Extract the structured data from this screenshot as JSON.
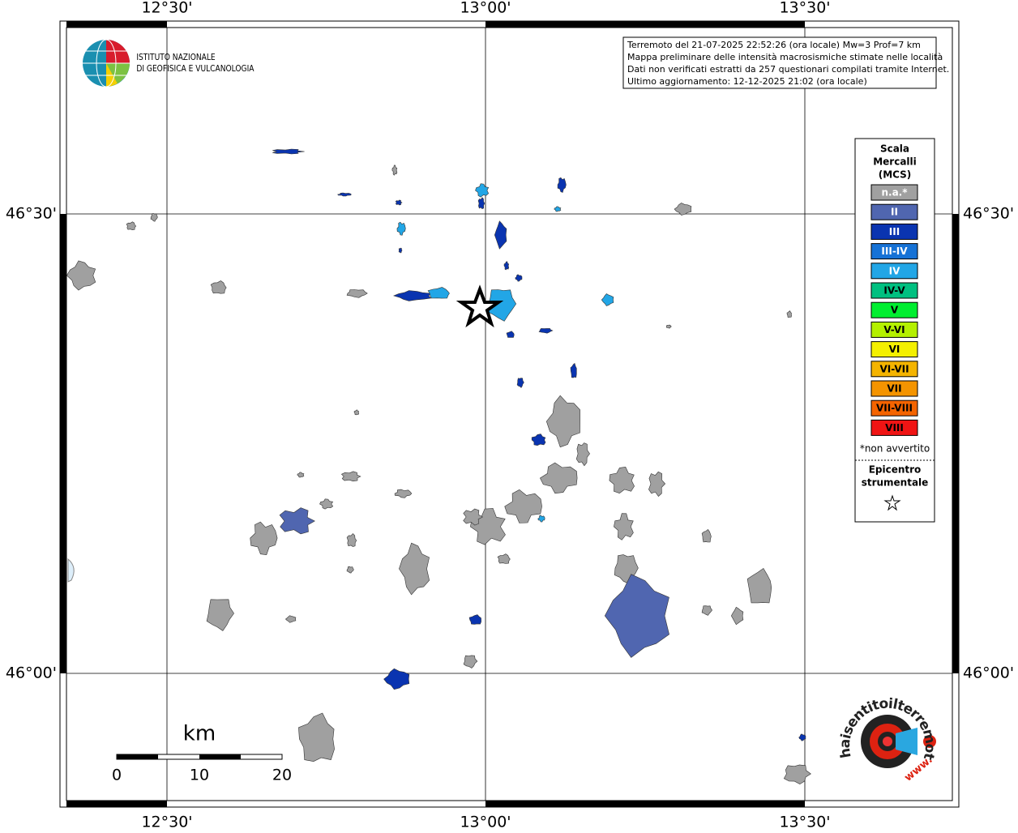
{
  "map": {
    "x_labels": [
      "12°30'",
      "13°00'",
      "13°30'"
    ],
    "y_labels": [
      "46°30'",
      "46°00'"
    ],
    "info": [
      "Terremoto del 21-07-2025 22:52:26 (ora locale) Mw=3 Prof=7 km",
      "Mappa preliminare delle intensità macrosismiche stimate nelle località",
      "Dati non verificati estratti da 257 questionari compilati tramite Internet.",
      "Ultimo aggiornamento: 12-12-2025 21:02 (ora locale)"
    ],
    "logo": [
      "ISTITUTO NAZIONALE",
      "DI GEOFISICA E VULCANOLOGIA"
    ],
    "legend": {
      "title": [
        "Scala",
        "Mercalli",
        "(MCS)"
      ],
      "items": [
        {
          "label": "n.a.*",
          "color": "#a0a0a0"
        },
        {
          "label": "II",
          "color": "#5066b0"
        },
        {
          "label": "III",
          "color": "#0a34b0"
        },
        {
          "label": "III-IV",
          "color": "#1672d6"
        },
        {
          "label": "IV",
          "color": "#22a6e6"
        },
        {
          "label": "IV-V",
          "color": "#00c080"
        },
        {
          "label": "V",
          "color": "#00ee30"
        },
        {
          "label": "V-VI",
          "color": "#b4f000"
        },
        {
          "label": "VI",
          "color": "#f4f000"
        },
        {
          "label": "VI-VII",
          "color": "#f4b400"
        },
        {
          "label": "VII",
          "color": "#f49400"
        },
        {
          "label": "VII-VIII",
          "color": "#f46400"
        },
        {
          "label": "VIII",
          "color": "#f01414"
        }
      ],
      "note": "*non avvertito",
      "epicenter": [
        "Epicentro",
        "strumentale"
      ]
    },
    "scale_bar": {
      "unit": "km",
      "ticks": [
        0,
        10,
        20
      ]
    },
    "site_logo": {
      "text": "haisentitoilterremoto.it",
      "www": "www."
    }
  }
}
